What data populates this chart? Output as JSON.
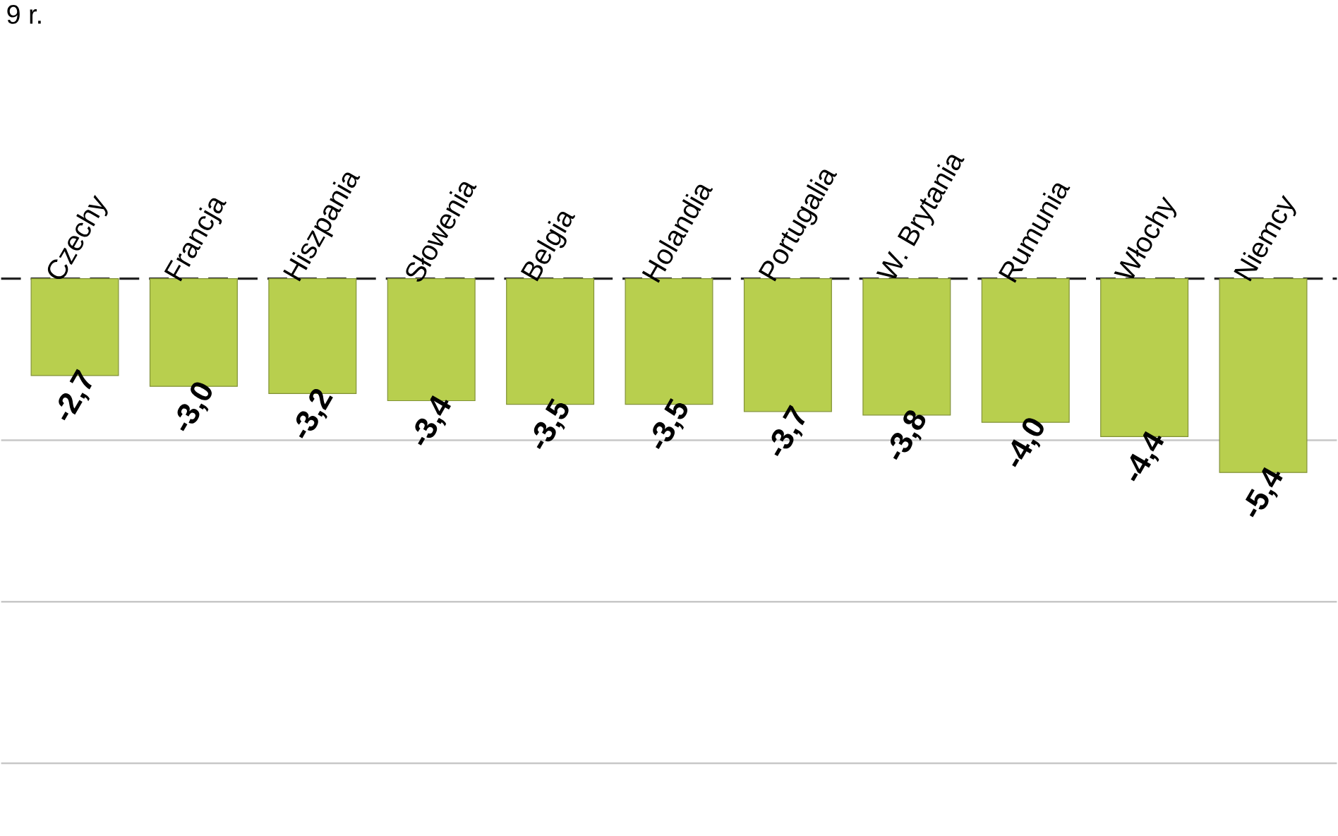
{
  "chart_data": {
    "type": "bar",
    "title": "9 r.",
    "categories": [
      "Czechy",
      "Francja",
      "Hiszpania",
      "Słowenia",
      "Belgia",
      "Holandia",
      "Portugalia",
      "W. Brytania",
      "Rumunia",
      "Włochy",
      "Niemcy"
    ],
    "values": [
      -2.7,
      -3.0,
      -3.2,
      -3.4,
      -3.5,
      -3.5,
      -3.7,
      -3.8,
      -4.0,
      -4.4,
      -5.4
    ],
    "value_labels": [
      "-2,7",
      "-3,0",
      "-3,2",
      "-3,4",
      "-3,5",
      "-3,5",
      "-3,7",
      "-3,8",
      "-4,0",
      "-4,4",
      "-5,4"
    ],
    "color": "#b8cf4e",
    "tick_labels": "x",
    "ref_lines": [
      {
        "axis": "y",
        "value": 0,
        "color": "#222222",
        "line_style": "dashed"
      },
      {
        "axis": "y",
        "value": -4.5,
        "color": "#c7c7c7",
        "line_style": "solid"
      },
      {
        "axis": "y",
        "value": -9,
        "color": "#c7c7c7",
        "line_style": "solid"
      },
      {
        "axis": "y",
        "value": -13.5,
        "color": "#c7c7c7",
        "line_style": "solid"
      }
    ]
  }
}
